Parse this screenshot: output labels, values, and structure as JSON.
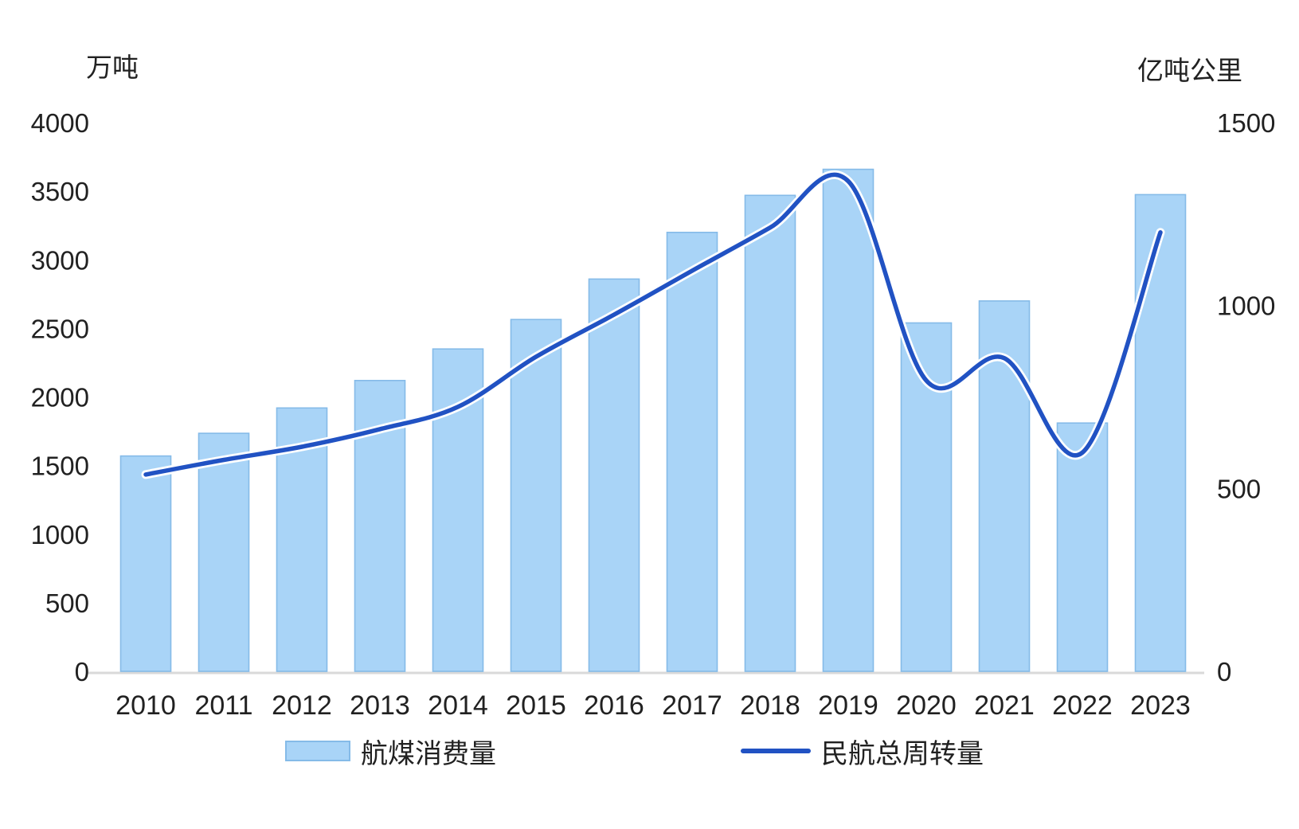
{
  "chart_data": {
    "type": "combo",
    "categories": [
      "2010",
      "2011",
      "2012",
      "2013",
      "2014",
      "2015",
      "2016",
      "2017",
      "2018",
      "2019",
      "2020",
      "2021",
      "2022",
      "2023"
    ],
    "series": [
      {
        "name": "航煤消费量",
        "type": "bar",
        "axis": "left",
        "unit": "万吨",
        "values": [
          1570,
          1735,
          1920,
          2120,
          2350,
          2565,
          2860,
          3200,
          3470,
          3660,
          2540,
          2700,
          1810,
          3475
        ],
        "fill_color": "#A9D4F7",
        "border_color": "#85BBE8"
      },
      {
        "name": "民航总周转量",
        "type": "line",
        "axis": "right",
        "unit": "亿吨公里",
        "values": [
          538,
          578,
          614,
          662,
          723,
          860,
          975,
          1095,
          1213,
          1340,
          795,
          856,
          598,
          1200
        ],
        "color": "#2152C3",
        "halo_color": "#FFFFFF",
        "smooth": true
      }
    ],
    "left_axis": {
      "title": "万吨",
      "min": 0,
      "max": 4000,
      "tick_step": 500,
      "ticks": [
        0,
        500,
        1000,
        1500,
        2000,
        2500,
        3000,
        3500,
        4000
      ]
    },
    "right_axis": {
      "title": "亿吨公里",
      "min": 0,
      "max": 1500,
      "tick_step": 500,
      "ticks": [
        0,
        500,
        1000,
        1500
      ]
    },
    "grid": false,
    "legend_position": "bottom",
    "colors": {
      "axis_line": "#D9D9D9",
      "text": "#212121",
      "background": "#FFFFFF"
    }
  }
}
